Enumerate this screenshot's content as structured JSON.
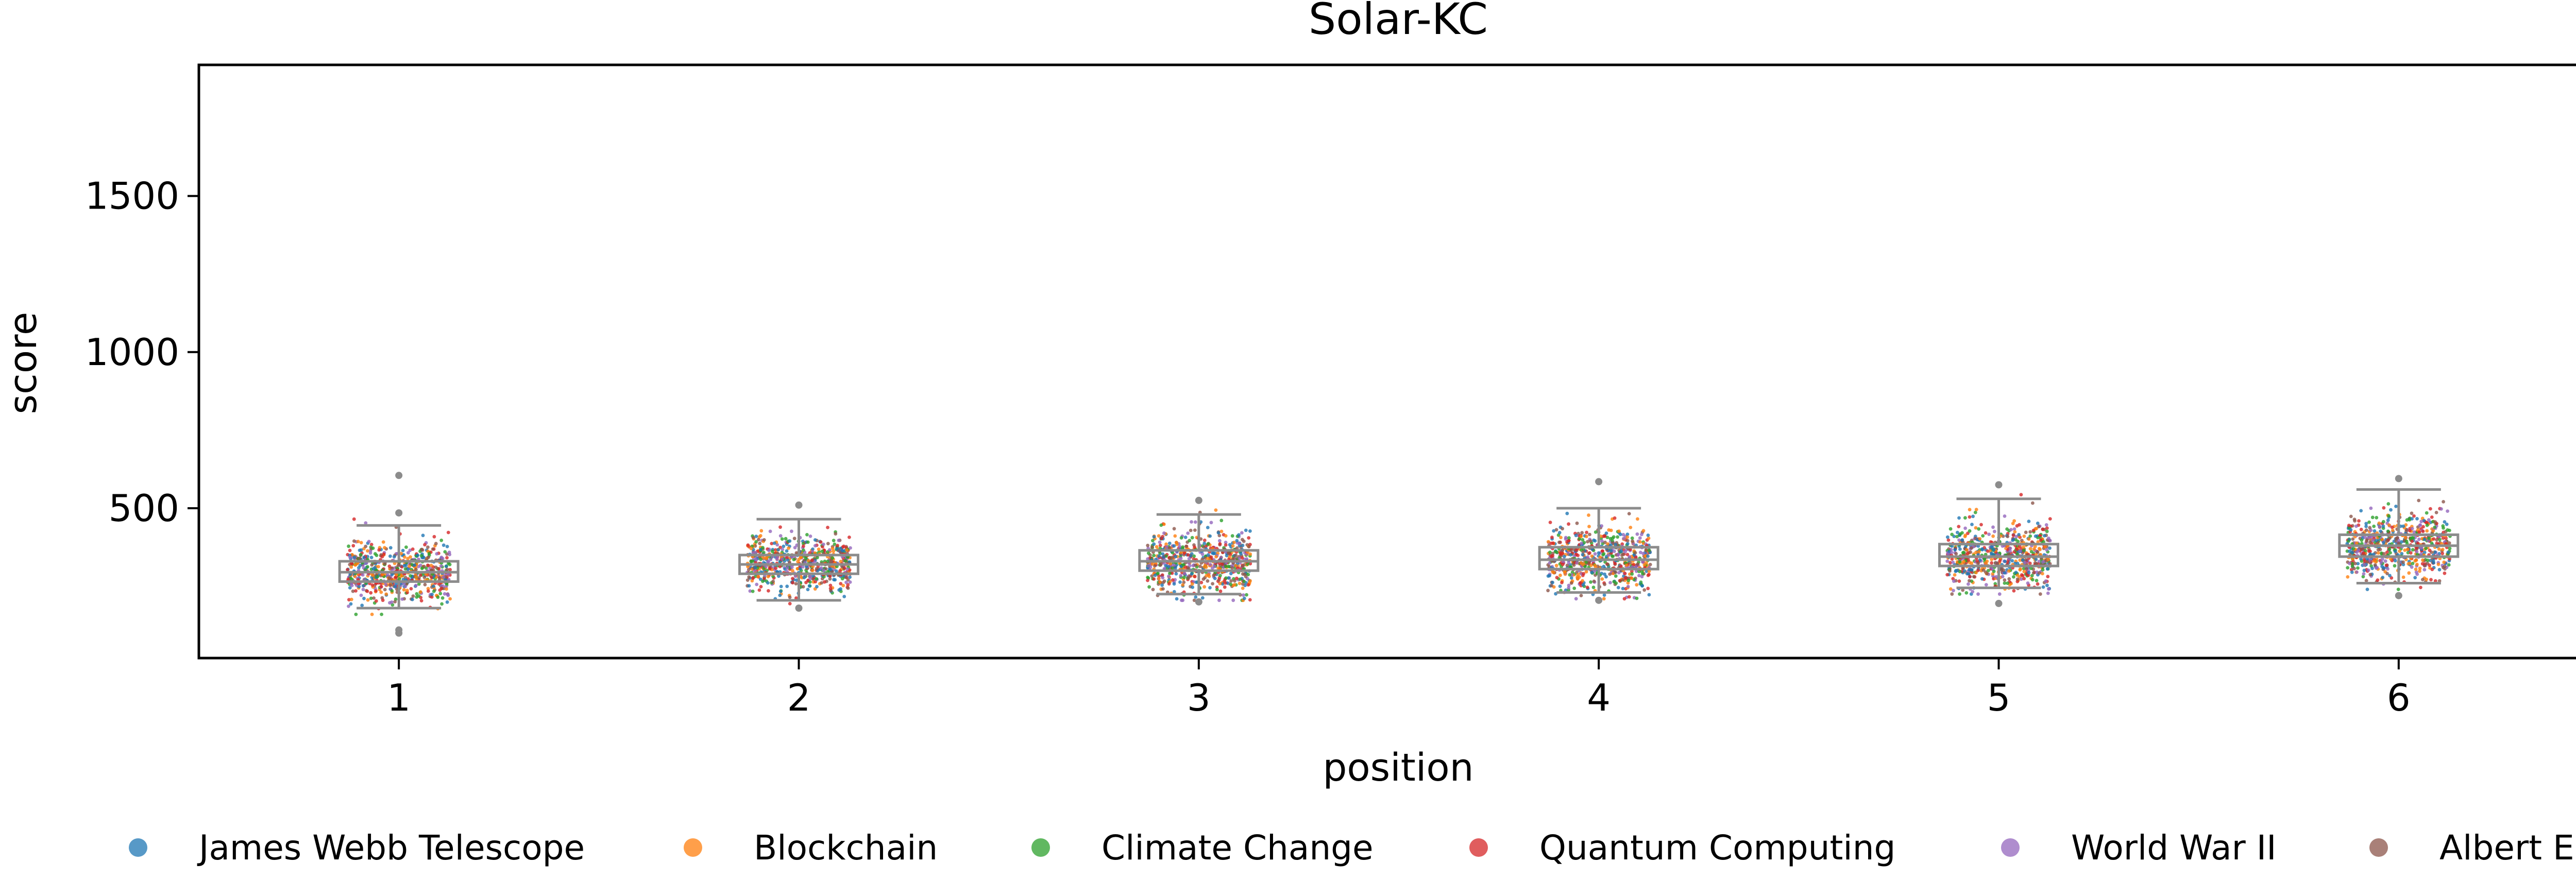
{
  "chart_data": {
    "type": "scatter",
    "title": "Solar-KC",
    "xlabel": "position",
    "ylabel": "score",
    "x_categories": [
      "1",
      "2",
      "3",
      "4",
      "5",
      "6"
    ],
    "xlim": [
      0.5,
      6.5
    ],
    "ylim": [
      20,
      1920
    ],
    "yticks": [
      500,
      1000,
      1500
    ],
    "grid": false,
    "legend_position": "bottom",
    "series": [
      {
        "name": "James Webb Telescope",
        "color": "#1f77b4"
      },
      {
        "name": "Blockchain",
        "color": "#ff7f0e"
      },
      {
        "name": "Climate Change",
        "color": "#2ca02c"
      },
      {
        "name": "Quantum Computing",
        "color": "#d62728"
      },
      {
        "name": "World War II",
        "color": "#9467bd"
      },
      {
        "name": "Albert Einstein",
        "color": "#8c564b"
      }
    ],
    "boxes": [
      {
        "position": 1,
        "whisker_low": 180,
        "q1": 265,
        "median": 295,
        "q3": 330,
        "whisker_high": 445,
        "outliers": [
          605,
          485,
          110,
          100
        ]
      },
      {
        "position": 2,
        "whisker_low": 205,
        "q1": 290,
        "median": 320,
        "q3": 350,
        "whisker_high": 465,
        "outliers": [
          510,
          180
        ]
      },
      {
        "position": 3,
        "whisker_low": 225,
        "q1": 300,
        "median": 330,
        "q3": 365,
        "whisker_high": 480,
        "outliers": [
          525,
          200
        ]
      },
      {
        "position": 4,
        "whisker_low": 230,
        "q1": 305,
        "median": 335,
        "q3": 375,
        "whisker_high": 500,
        "outliers": [
          585,
          205
        ]
      },
      {
        "position": 5,
        "whisker_low": 245,
        "q1": 315,
        "median": 345,
        "q3": 385,
        "whisker_high": 530,
        "outliers": [
          575,
          195
        ]
      },
      {
        "position": 6,
        "whisker_low": 260,
        "q1": 345,
        "median": 380,
        "q3": 415,
        "whisker_high": 560,
        "outliers": [
          595,
          220
        ]
      }
    ]
  }
}
